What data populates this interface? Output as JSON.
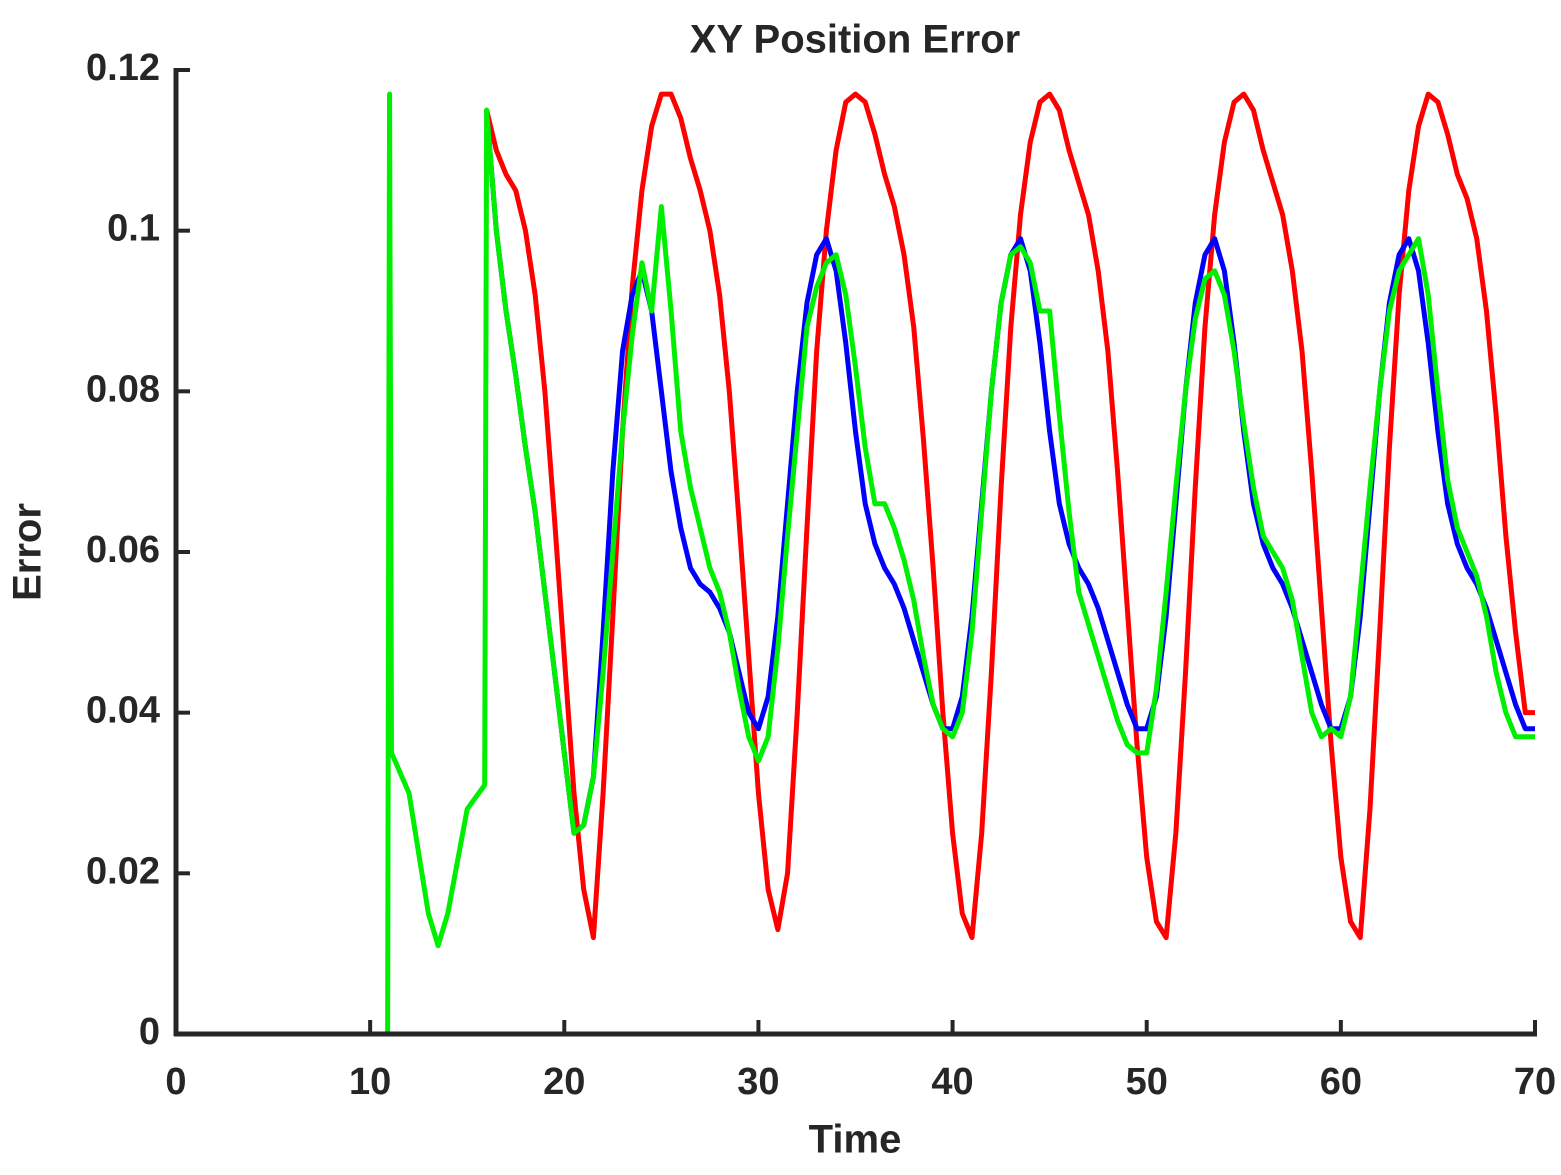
{
  "chart_data": {
    "type": "line",
    "title": "XY Position Error",
    "x_label": "Time",
    "y_label": "Error",
    "xlim": [
      0,
      70
    ],
    "ylim": [
      0,
      0.12
    ],
    "xticks": [
      0,
      10,
      20,
      30,
      40,
      50,
      60,
      70
    ],
    "yticks": [
      0,
      0.02,
      0.04,
      0.06,
      0.08,
      0.1,
      0.12
    ],
    "grid": false,
    "x": [
      1,
      2,
      3,
      4,
      5,
      6,
      7,
      8,
      9,
      10,
      10.9,
      11,
      11.1,
      12,
      13,
      13.5,
      14,
      15,
      15.9,
      16,
      16.5,
      17,
      17.5,
      18,
      18.5,
      19,
      19.5,
      20,
      20.5,
      21,
      21.5,
      22,
      22.5,
      23,
      23.5,
      24,
      24.5,
      25,
      25.5,
      26,
      26.5,
      27,
      27.5,
      28,
      28.5,
      29,
      29.5,
      30,
      30.5,
      31,
      31.5,
      32,
      32.5,
      33,
      33.5,
      34,
      34.5,
      35,
      35.5,
      36,
      36.5,
      37,
      37.5,
      38,
      38.5,
      39,
      39.5,
      40,
      40.5,
      41,
      41.5,
      42,
      42.5,
      43,
      43.5,
      44,
      44.5,
      45,
      45.5,
      46,
      46.5,
      47,
      47.5,
      48,
      48.5,
      49,
      49.5,
      50,
      50.5,
      51,
      51.5,
      52,
      52.5,
      53,
      53.5,
      54,
      54.5,
      55,
      55.5,
      56,
      56.5,
      57,
      57.5,
      58,
      58.5,
      59,
      59.5,
      60,
      60.5,
      61,
      61.5,
      62,
      62.5,
      63,
      63.5,
      64,
      64.5,
      65,
      65.5,
      66,
      66.5,
      67,
      67.5,
      68,
      68.5,
      69,
      69.5,
      70
    ],
    "series": [
      {
        "color": "#ff0000",
        "values": [
          null,
          null,
          null,
          null,
          null,
          null,
          null,
          null,
          null,
          null,
          null,
          null,
          null,
          null,
          null,
          null,
          null,
          null,
          null,
          0.115,
          0.11,
          0.107,
          0.105,
          0.1,
          0.092,
          0.08,
          0.064,
          0.047,
          0.03,
          0.018,
          0.012,
          0.03,
          0.052,
          0.075,
          0.093,
          0.105,
          0.113,
          0.117,
          0.117,
          0.114,
          0.109,
          0.105,
          0.1,
          0.092,
          0.08,
          0.064,
          0.047,
          0.03,
          0.018,
          0.013,
          0.02,
          0.04,
          0.063,
          0.085,
          0.1,
          0.11,
          0.116,
          0.117,
          0.116,
          0.112,
          0.107,
          0.103,
          0.097,
          0.088,
          0.074,
          0.058,
          0.04,
          0.025,
          0.015,
          0.012,
          0.025,
          0.045,
          0.068,
          0.088,
          0.102,
          0.111,
          0.116,
          0.117,
          0.115,
          0.11,
          0.106,
          0.102,
          0.095,
          0.085,
          0.07,
          0.053,
          0.036,
          0.022,
          0.014,
          0.012,
          0.025,
          0.045,
          0.068,
          0.088,
          0.102,
          0.111,
          0.116,
          0.117,
          0.115,
          0.11,
          0.106,
          0.102,
          0.095,
          0.085,
          0.07,
          0.053,
          0.036,
          0.022,
          0.014,
          0.012,
          0.028,
          0.05,
          0.073,
          0.092,
          0.105,
          0.113,
          0.117,
          0.116,
          0.112,
          0.107,
          0.104,
          0.099,
          0.09,
          0.077,
          0.062,
          0.05,
          0.04,
          0.04
        ]
      },
      {
        "color": "#0000ff",
        "values": [
          null,
          null,
          null,
          null,
          null,
          null,
          null,
          null,
          null,
          null,
          null,
          null,
          null,
          null,
          null,
          null,
          null,
          null,
          null,
          0.115,
          0.1,
          0.09,
          0.082,
          0.073,
          0.065,
          0.055,
          0.045,
          0.035,
          0.025,
          0.026,
          0.032,
          0.05,
          0.07,
          0.085,
          0.092,
          0.095,
          0.09,
          0.08,
          0.07,
          0.063,
          0.058,
          0.056,
          0.055,
          0.053,
          0.05,
          0.045,
          0.04,
          0.038,
          0.042,
          0.052,
          0.066,
          0.08,
          0.091,
          0.097,
          0.099,
          0.095,
          0.086,
          0.075,
          0.066,
          0.061,
          0.058,
          0.056,
          0.053,
          0.049,
          0.045,
          0.041,
          0.038,
          0.038,
          0.042,
          0.052,
          0.066,
          0.08,
          0.091,
          0.097,
          0.099,
          0.095,
          0.086,
          0.075,
          0.066,
          0.061,
          0.058,
          0.056,
          0.053,
          0.049,
          0.045,
          0.041,
          0.038,
          0.038,
          0.042,
          0.052,
          0.066,
          0.08,
          0.091,
          0.097,
          0.099,
          0.095,
          0.086,
          0.075,
          0.066,
          0.061,
          0.058,
          0.056,
          0.053,
          0.049,
          0.045,
          0.041,
          0.038,
          0.038,
          0.042,
          0.052,
          0.066,
          0.08,
          0.091,
          0.097,
          0.099,
          0.095,
          0.086,
          0.075,
          0.066,
          0.061,
          0.058,
          0.056,
          0.053,
          0.049,
          0.045,
          0.041,
          0.038,
          0.038
        ]
      },
      {
        "color": "#00ee00",
        "values": [
          0,
          0,
          0,
          0,
          0,
          0,
          0,
          0,
          0,
          0,
          0,
          0.117,
          0.035,
          0.03,
          0.015,
          0.011,
          0.015,
          0.028,
          0.031,
          0.115,
          0.1,
          0.09,
          0.082,
          0.073,
          0.065,
          0.055,
          0.045,
          0.035,
          0.025,
          0.026,
          0.032,
          0.045,
          0.06,
          0.075,
          0.087,
          0.096,
          0.09,
          0.103,
          0.09,
          0.075,
          0.068,
          0.063,
          0.058,
          0.055,
          0.05,
          0.043,
          0.037,
          0.034,
          0.037,
          0.048,
          0.062,
          0.075,
          0.088,
          0.093,
          0.096,
          0.097,
          0.092,
          0.083,
          0.073,
          0.066,
          0.066,
          0.063,
          0.059,
          0.054,
          0.047,
          0.041,
          0.038,
          0.037,
          0.04,
          0.05,
          0.065,
          0.08,
          0.091,
          0.097,
          0.098,
          0.096,
          0.09,
          0.09,
          0.077,
          0.065,
          0.055,
          0.051,
          0.047,
          0.043,
          0.039,
          0.036,
          0.035,
          0.035,
          0.043,
          0.055,
          0.068,
          0.08,
          0.089,
          0.094,
          0.095,
          0.092,
          0.085,
          0.076,
          0.068,
          0.062,
          0.06,
          0.058,
          0.054,
          0.047,
          0.04,
          0.037,
          0.038,
          0.037,
          0.042,
          0.055,
          0.068,
          0.08,
          0.09,
          0.095,
          0.097,
          0.099,
          0.092,
          0.08,
          0.069,
          0.063,
          0.06,
          0.057,
          0.052,
          0.045,
          0.04,
          0.037,
          0.037,
          0.037
        ]
      }
    ]
  }
}
